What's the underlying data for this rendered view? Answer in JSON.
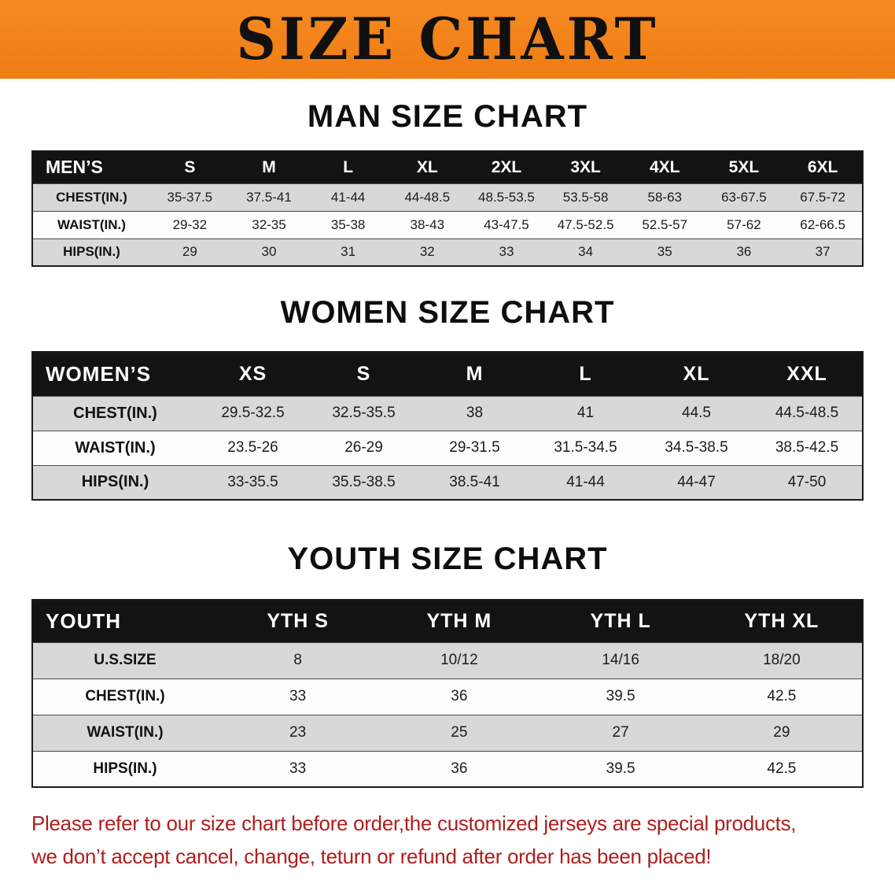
{
  "banner": {
    "title": "SIZE CHART"
  },
  "men": {
    "heading": "MAN SIZE CHART",
    "table": {
      "header": [
        "MEN’S",
        "S",
        "M",
        "L",
        "XL",
        "2XL",
        "3XL",
        "4XL",
        "5XL",
        "6XL"
      ],
      "rows": [
        [
          "CHEST(IN.)",
          "35-37.5",
          "37.5-41",
          "41-44",
          "44-48.5",
          "48.5-53.5",
          "53.5-58",
          "58-63",
          "63-67.5",
          "67.5-72"
        ],
        [
          "WAIST(IN.)",
          "29-32",
          "32-35",
          "35-38",
          "38-43",
          "43-47.5",
          "47.5-52.5",
          "52.5-57",
          "57-62",
          "62-66.5"
        ],
        [
          "HIPS(IN.)",
          "29",
          "30",
          "31",
          "32",
          "33",
          "34",
          "35",
          "36",
          "37"
        ]
      ]
    }
  },
  "women": {
    "heading": "WOMEN SIZE CHART",
    "table": {
      "header": [
        "WOMEN’S",
        "XS",
        "S",
        "M",
        "L",
        "XL",
        "XXL"
      ],
      "rows": [
        [
          "CHEST(IN.)",
          "29.5-32.5",
          "32.5-35.5",
          "38",
          "41",
          "44.5",
          "44.5-48.5"
        ],
        [
          "WAIST(IN.)",
          "23.5-26",
          "26-29",
          "29-31.5",
          "31.5-34.5",
          "34.5-38.5",
          "38.5-42.5"
        ],
        [
          "HIPS(IN.)",
          "33-35.5",
          "35.5-38.5",
          "38.5-41",
          "41-44",
          "44-47",
          "47-50"
        ]
      ]
    }
  },
  "youth": {
    "heading": "YOUTH SIZE CHART",
    "table": {
      "header": [
        "YOUTH",
        "YTH S",
        "YTH M",
        "YTH L",
        "YTH XL"
      ],
      "rows": [
        [
          "U.S.SIZE",
          "8",
          "10/12",
          "14/16",
          "18/20"
        ],
        [
          "CHEST(IN.)",
          "33",
          "36",
          "39.5",
          "42.5"
        ],
        [
          "WAIST(IN.)",
          "23",
          "25",
          "27",
          "29"
        ],
        [
          "HIPS(IN.)",
          "33",
          "36",
          "39.5",
          "42.5"
        ]
      ]
    }
  },
  "footer": {
    "line1": "Please refer to our size chart before order,the customized jerseys are special products,",
    "line2": "we don’t accept cancel, change, teturn or refund after order has been placed!"
  },
  "colors": {
    "banner_orange": "#f28222",
    "table_header_black": "#131313",
    "row_gray": "#d8d8d8",
    "row_white": "#fdfdfd",
    "footer_red": "#b01e1e"
  }
}
